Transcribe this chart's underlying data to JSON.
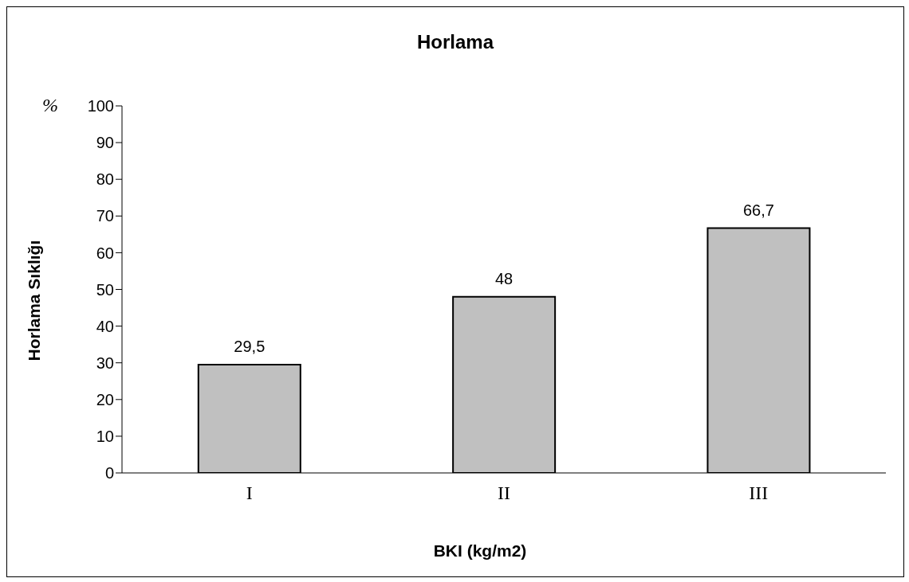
{
  "chart_data": {
    "type": "bar",
    "title": "Horlama",
    "xlabel": "BKI (kg/m2)",
    "ylabel": "Horlama Sıklığı",
    "categories": [
      "I",
      "II",
      "III"
    ],
    "values": [
      29.5,
      48,
      66.7
    ],
    "color": "#c0c0c0",
    "value_labels": [
      "29,5",
      "48",
      "66,7"
    ],
    "ylim": [
      0,
      100
    ],
    "yticks": [
      0,
      10,
      20,
      30,
      40,
      50,
      60,
      70,
      80,
      90,
      100
    ],
    "grid": false,
    "annotations": [
      "%"
    ]
  }
}
